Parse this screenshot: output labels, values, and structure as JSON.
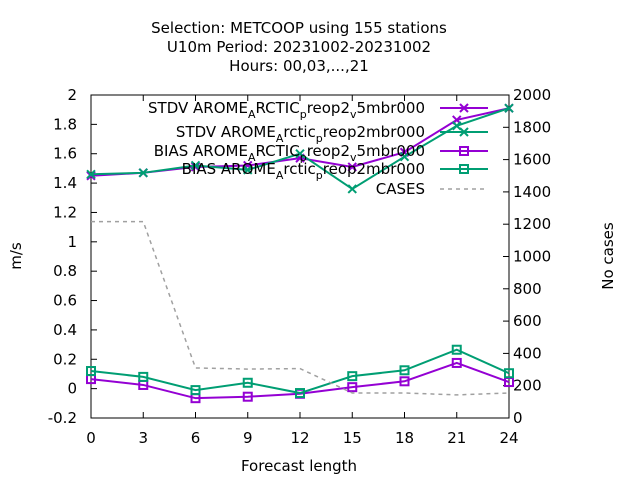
{
  "colors": {
    "purple": "#9400d3",
    "teal": "#009e73",
    "gray": "#a0a0a0"
  },
  "chart_data": {
    "type": "line",
    "title": [
      "Selection: METCOOP using   155 stations",
      "U10m   Period: 20231002-20231002",
      "Hours:  00,03,...,21"
    ],
    "xlabel": "Forecast length",
    "ylabel": "m/s",
    "y2label": "No cases",
    "x": [
      0,
      3,
      6,
      9,
      12,
      15,
      18,
      21,
      24
    ],
    "xlim": [
      0,
      24
    ],
    "ylim": [
      -0.2,
      2
    ],
    "y2lim": [
      0,
      2000
    ],
    "xticks": [
      "0",
      "3",
      "6",
      "9",
      "12",
      "15",
      "18",
      "21",
      "24"
    ],
    "yticks": [
      "-0.2",
      "0",
      "0.2",
      "0.4",
      "0.6",
      "0.8",
      "1",
      "1.2",
      "1.4",
      "1.6",
      "1.8",
      "2"
    ],
    "y2ticks": [
      "0",
      "200",
      "400",
      "600",
      "800",
      "1000",
      "1200",
      "1400",
      "1600",
      "1800",
      "2000"
    ],
    "grid": false,
    "legend_position": "top-right",
    "series": [
      {
        "legend": [
          "STDV AROME",
          "A",
          "RCTIC",
          "p",
          "reop2",
          "v",
          "5mbr000"
        ],
        "color": "purple",
        "marker": "x",
        "axis": "y",
        "values": [
          1.45,
          1.47,
          1.51,
          1.52,
          1.57,
          1.51,
          1.61,
          1.83,
          1.91
        ]
      },
      {
        "legend": [
          "STDV AROME",
          "A",
          "rctic",
          "p",
          "reop2mbr000"
        ],
        "color": "teal",
        "marker": "x",
        "axis": "y",
        "values": [
          1.46,
          1.47,
          1.52,
          1.49,
          1.6,
          1.36,
          1.58,
          1.79,
          1.91
        ]
      },
      {
        "legend": [
          "BIAS AROME",
          "A",
          "RCTIC",
          "p",
          "reop2",
          "v",
          "5mbr000"
        ],
        "color": "purple",
        "marker": "square",
        "axis": "y",
        "values": [
          0.065,
          0.025,
          -0.065,
          -0.055,
          -0.035,
          0.01,
          0.05,
          0.175,
          0.045
        ]
      },
      {
        "legend": [
          "BIAS AROME",
          "A",
          "rctic",
          "p",
          "reop2mbr000"
        ],
        "color": "teal",
        "marker": "square",
        "axis": "y",
        "values": [
          0.12,
          0.08,
          -0.01,
          0.04,
          -0.03,
          0.085,
          0.125,
          0.265,
          0.105
        ]
      },
      {
        "legend": [
          "CASES"
        ],
        "color": "gray",
        "marker": "none",
        "dashed": true,
        "axis": "y2",
        "values": [
          1216,
          1216,
          310,
          303,
          306,
          155,
          155,
          143,
          155
        ]
      }
    ]
  }
}
